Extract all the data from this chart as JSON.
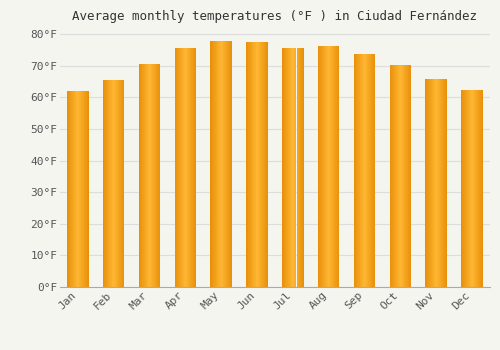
{
  "title": "Average monthly temperatures (°F ) in Ciudad Fernández",
  "months": [
    "Jan",
    "Feb",
    "Mar",
    "Apr",
    "May",
    "Jun",
    "Jul",
    "Aug",
    "Sep",
    "Oct",
    "Nov",
    "Dec"
  ],
  "values": [
    62.2,
    65.5,
    70.7,
    75.6,
    77.9,
    77.5,
    75.6,
    76.3,
    73.8,
    70.3,
    65.8,
    62.4
  ],
  "bar_color_center": "#FFB733",
  "bar_color_edge": "#E8900A",
  "background_color": "#F5F5F0",
  "plot_bg_color": "#F5F5F0",
  "grid_color": "#DDDDDD",
  "ylim": [
    0,
    82
  ],
  "yticks": [
    0,
    10,
    20,
    30,
    40,
    50,
    60,
    70,
    80
  ],
  "title_fontsize": 9,
  "tick_fontsize": 8,
  "font_family": "monospace",
  "bar_width": 0.6
}
